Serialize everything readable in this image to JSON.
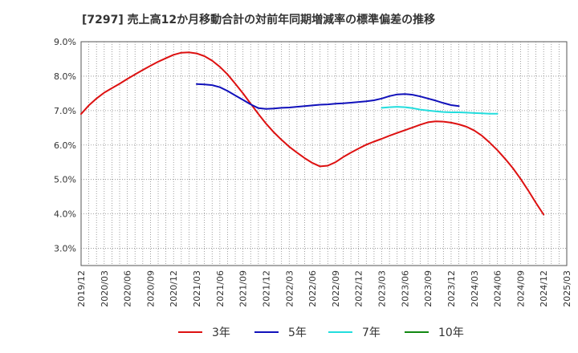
{
  "chart_data": {
    "type": "line",
    "title": "[7297]  売上高12か月移動合計の対前年同期増減率の標準偏差の推移",
    "xlabel": "",
    "ylabel": "",
    "x_ticks": [
      "2019/12",
      "2020/03",
      "2020/06",
      "2020/09",
      "2020/12",
      "2021/03",
      "2021/06",
      "2021/09",
      "2021/12",
      "2022/03",
      "2022/06",
      "2022/09",
      "2022/12",
      "2023/03",
      "2023/06",
      "2023/09",
      "2023/12",
      "2024/03",
      "2024/06",
      "2024/09",
      "2024/12",
      "2025/03"
    ],
    "y_ticks": [
      "3.0%",
      "4.0%",
      "5.0%",
      "6.0%",
      "7.0%",
      "8.0%",
      "9.0%"
    ],
    "ylim": [
      2.5,
      9.0
    ],
    "grid": true,
    "legend_position": "bottom",
    "series": [
      {
        "name": "3年",
        "color": "#dd1111",
        "points": [
          [
            "2019/12",
            6.9
          ],
          [
            "2020/01",
            7.15
          ],
          [
            "2020/02",
            7.35
          ],
          [
            "2020/03",
            7.52
          ],
          [
            "2020/04",
            7.65
          ],
          [
            "2020/05",
            7.78
          ],
          [
            "2020/06",
            7.92
          ],
          [
            "2020/07",
            8.05
          ],
          [
            "2020/08",
            8.18
          ],
          [
            "2020/09",
            8.3
          ],
          [
            "2020/10",
            8.42
          ],
          [
            "2020/11",
            8.52
          ],
          [
            "2020/12",
            8.62
          ],
          [
            "2021/01",
            8.68
          ],
          [
            "2021/02",
            8.69
          ],
          [
            "2021/03",
            8.66
          ],
          [
            "2021/04",
            8.58
          ],
          [
            "2021/05",
            8.45
          ],
          [
            "2021/06",
            8.27
          ],
          [
            "2021/07",
            8.05
          ],
          [
            "2021/08",
            7.78
          ],
          [
            "2021/09",
            7.5
          ],
          [
            "2021/10",
            7.2
          ],
          [
            "2021/11",
            6.9
          ],
          [
            "2021/12",
            6.62
          ],
          [
            "2022/01",
            6.37
          ],
          [
            "2022/02",
            6.15
          ],
          [
            "2022/03",
            5.95
          ],
          [
            "2022/04",
            5.78
          ],
          [
            "2022/05",
            5.62
          ],
          [
            "2022/06",
            5.48
          ],
          [
            "2022/07",
            5.38
          ],
          [
            "2022/08",
            5.4
          ],
          [
            "2022/09",
            5.5
          ],
          [
            "2022/10",
            5.65
          ],
          [
            "2022/11",
            5.78
          ],
          [
            "2022/12",
            5.9
          ],
          [
            "2023/01",
            6.01
          ],
          [
            "2023/02",
            6.1
          ],
          [
            "2023/03",
            6.18
          ],
          [
            "2023/04",
            6.27
          ],
          [
            "2023/05",
            6.35
          ],
          [
            "2023/06",
            6.43
          ],
          [
            "2023/07",
            6.51
          ],
          [
            "2023/08",
            6.59
          ],
          [
            "2023/09",
            6.66
          ],
          [
            "2023/10",
            6.69
          ],
          [
            "2023/11",
            6.68
          ],
          [
            "2023/12",
            6.65
          ],
          [
            "2024/01",
            6.6
          ],
          [
            "2024/02",
            6.53
          ],
          [
            "2024/03",
            6.42
          ],
          [
            "2024/04",
            6.27
          ],
          [
            "2024/05",
            6.07
          ],
          [
            "2024/06",
            5.85
          ],
          [
            "2024/07",
            5.6
          ],
          [
            "2024/08",
            5.33
          ],
          [
            "2024/09",
            5.02
          ],
          [
            "2024/10",
            4.68
          ],
          [
            "2024/11",
            4.32
          ],
          [
            "2024/12",
            3.98
          ]
        ]
      },
      {
        "name": "5年",
        "color": "#1111bb",
        "points": [
          [
            "2021/03",
            7.77
          ],
          [
            "2021/04",
            7.76
          ],
          [
            "2021/05",
            7.74
          ],
          [
            "2021/06",
            7.68
          ],
          [
            "2021/07",
            7.57
          ],
          [
            "2021/08",
            7.44
          ],
          [
            "2021/09",
            7.31
          ],
          [
            "2021/10",
            7.18
          ],
          [
            "2021/11",
            7.07
          ],
          [
            "2021/12",
            7.05
          ],
          [
            "2022/01",
            7.06
          ],
          [
            "2022/02",
            7.08
          ],
          [
            "2022/03",
            7.09
          ],
          [
            "2022/04",
            7.11
          ],
          [
            "2022/05",
            7.13
          ],
          [
            "2022/06",
            7.15
          ],
          [
            "2022/07",
            7.17
          ],
          [
            "2022/08",
            7.18
          ],
          [
            "2022/09",
            7.2
          ],
          [
            "2022/10",
            7.21
          ],
          [
            "2022/11",
            7.23
          ],
          [
            "2022/12",
            7.25
          ],
          [
            "2023/01",
            7.27
          ],
          [
            "2023/02",
            7.3
          ],
          [
            "2023/03",
            7.35
          ],
          [
            "2023/04",
            7.42
          ],
          [
            "2023/05",
            7.47
          ],
          [
            "2023/06",
            7.48
          ],
          [
            "2023/07",
            7.46
          ],
          [
            "2023/08",
            7.41
          ],
          [
            "2023/09",
            7.35
          ],
          [
            "2023/10",
            7.29
          ],
          [
            "2023/11",
            7.22
          ],
          [
            "2023/12",
            7.16
          ],
          [
            "2024/01",
            7.13
          ]
        ]
      },
      {
        "name": "7年",
        "color": "#22dddd",
        "points": [
          [
            "2023/03",
            7.08
          ],
          [
            "2023/04",
            7.1
          ],
          [
            "2023/05",
            7.11
          ],
          [
            "2023/06",
            7.1
          ],
          [
            "2023/07",
            7.07
          ],
          [
            "2023/08",
            7.03
          ],
          [
            "2023/09",
            7.0
          ],
          [
            "2023/10",
            6.98
          ],
          [
            "2023/11",
            6.96
          ],
          [
            "2023/12",
            6.95
          ],
          [
            "2024/01",
            6.95
          ],
          [
            "2024/02",
            6.94
          ],
          [
            "2024/03",
            6.93
          ],
          [
            "2024/04",
            6.92
          ],
          [
            "2024/05",
            6.91
          ],
          [
            "2024/06",
            6.91
          ]
        ]
      },
      {
        "name": "10年",
        "color": "#118811",
        "points": []
      }
    ]
  }
}
